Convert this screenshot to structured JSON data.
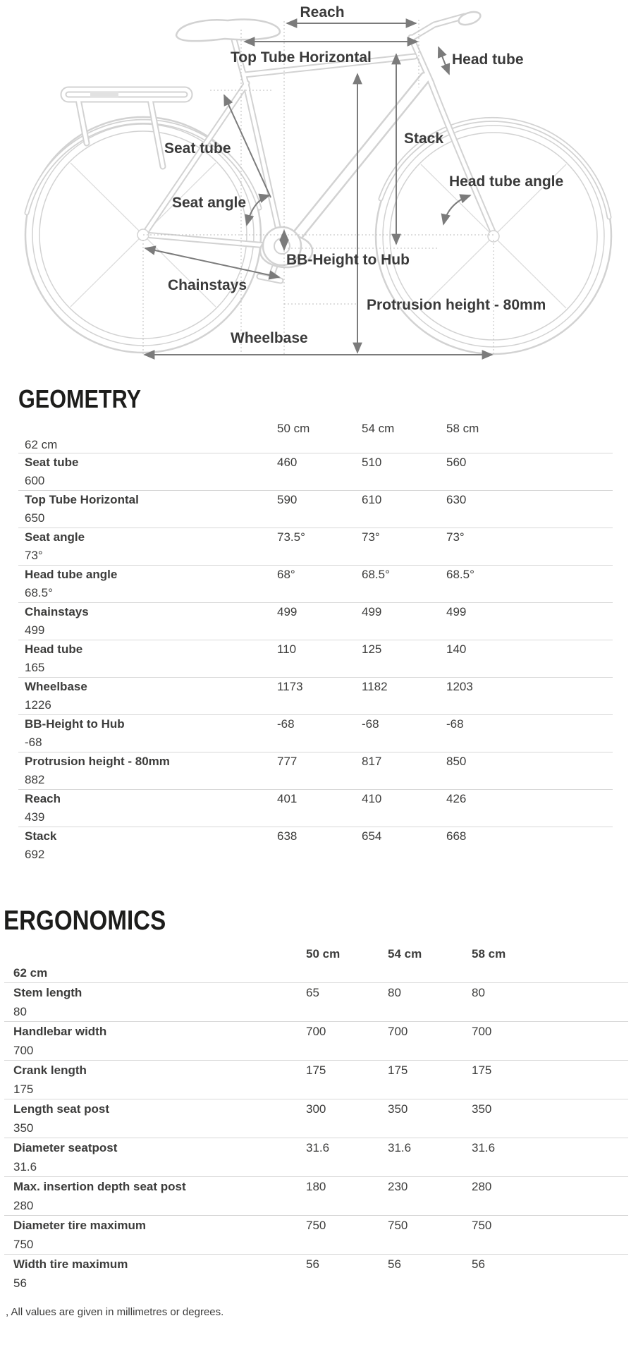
{
  "diagram": {
    "labels": {
      "reach": "Reach",
      "top_tube_horizontal": "Top Tube Horizontal",
      "head_tube": "Head tube",
      "seat_tube": "Seat tube",
      "stack": "Stack",
      "head_tube_angle": "Head tube angle",
      "seat_angle": "Seat angle",
      "bb_height_to_hub": "BB-Height to Hub",
      "chainstays": "Chainstays",
      "protrusion_height": "Protrusion height - 80mm",
      "wheelbase": "Wheelbase"
    }
  },
  "geometry": {
    "title": "GEOMETRY",
    "columns": [
      "50 cm",
      "54 cm",
      "58 cm",
      "62 cm"
    ],
    "rows": [
      {
        "label": "Seat tube",
        "values": [
          "460",
          "510",
          "560",
          "600"
        ]
      },
      {
        "label": "Top Tube Horizontal",
        "values": [
          "590",
          "610",
          "630",
          "650"
        ]
      },
      {
        "label": "Seat angle",
        "values": [
          "73.5°",
          "73°",
          "73°",
          "73°"
        ]
      },
      {
        "label": "Head tube angle",
        "values": [
          "68°",
          "68.5°",
          "68.5°",
          "68.5°"
        ]
      },
      {
        "label": "Chainstays",
        "values": [
          "499",
          "499",
          "499",
          "499"
        ]
      },
      {
        "label": "Head tube",
        "values": [
          "110",
          "125",
          "140",
          "165"
        ]
      },
      {
        "label": "Wheelbase",
        "values": [
          "1173",
          "1182",
          "1203",
          "1226"
        ]
      },
      {
        "label": "BB-Height to Hub",
        "values": [
          "-68",
          "-68",
          "-68",
          "-68"
        ]
      },
      {
        "label": "Protrusion height - 80mm",
        "values": [
          "777",
          "817",
          "850",
          "882"
        ]
      },
      {
        "label": "Reach",
        "values": [
          "401",
          "410",
          "426",
          "439"
        ]
      },
      {
        "label": "Stack",
        "values": [
          "638",
          "654",
          "668",
          "692"
        ]
      }
    ]
  },
  "ergonomics": {
    "title": "ERGONOMICS",
    "columns": [
      "50 cm",
      "54 cm",
      "58 cm",
      "62 cm"
    ],
    "rows": [
      {
        "label": "Stem length",
        "values": [
          "65",
          "80",
          "80",
          "80"
        ]
      },
      {
        "label": "Handlebar width",
        "values": [
          "700",
          "700",
          "700",
          "700"
        ]
      },
      {
        "label": "Crank length",
        "values": [
          "175",
          "175",
          "175",
          "175"
        ]
      },
      {
        "label": "Length seat post",
        "values": [
          "300",
          "350",
          "350",
          "350"
        ]
      },
      {
        "label": "Diameter seatpost",
        "values": [
          "31.6",
          "31.6",
          "31.6",
          "31.6"
        ]
      },
      {
        "label": "Max. insertion depth seat post",
        "values": [
          "180",
          "230",
          "280",
          "280"
        ]
      },
      {
        "label": "Diameter tire maximum",
        "values": [
          "750",
          "750",
          "750",
          "750"
        ]
      },
      {
        "label": "Width tire maximum",
        "values": [
          "56",
          "56",
          "56",
          "56"
        ]
      }
    ]
  },
  "footer": {
    "note": ", All values are given in millimetres or degrees."
  },
  "colors": {
    "text": "#3c3c3b",
    "heading": "#1d1d1b",
    "divider": "#d8d8d8",
    "line_art": "#d2d2d2",
    "dimension_arrow": "#7b7b7b"
  }
}
